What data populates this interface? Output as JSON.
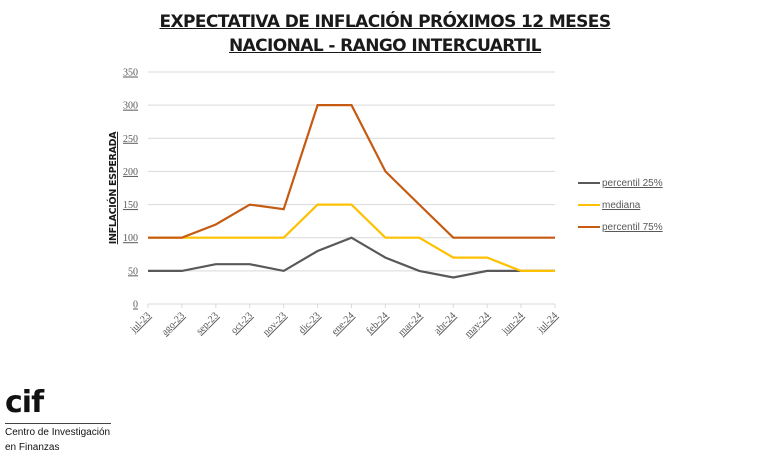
{
  "chart_data": {
    "type": "line",
    "title": "EXPECTATIVA DE INFLACIÓN PRÓXIMOS 12 MESES",
    "subtitle": "NACIONAL - RANGO INTERCUARTIL",
    "xlabel": "",
    "ylabel": "INFLACIÓN ESPERADA",
    "ylim": [
      0,
      350
    ],
    "yticks": [
      0,
      50,
      100,
      150,
      200,
      250,
      300,
      350
    ],
    "grid": true,
    "legend_position": "right",
    "categories": [
      "jul-23",
      "ago-23",
      "sep-23",
      "oct-23",
      "nov-23",
      "dic-23",
      "ene-24",
      "feb-24",
      "mar-24",
      "abr-24",
      "may-24",
      "jun-24",
      "jul-24"
    ],
    "series": [
      {
        "name": "percentil 25%",
        "color": "#595959",
        "values": [
          50,
          50,
          60,
          60,
          50,
          80,
          100,
          70,
          50,
          40,
          50,
          50,
          50
        ]
      },
      {
        "name": "mediana",
        "color": "#FFC000",
        "values": [
          100,
          100,
          100,
          100,
          100,
          150,
          150,
          100,
          100,
          70,
          70,
          50,
          50
        ]
      },
      {
        "name": "percentil 75%",
        "color": "#C55A11",
        "values": [
          100,
          100,
          120,
          150,
          143,
          300,
          300,
          200,
          150,
          100,
          100,
          100,
          100
        ]
      }
    ]
  },
  "logo": {
    "mark": "cif",
    "line1": "Centro de Investigación",
    "line2": "en Finanzas"
  }
}
